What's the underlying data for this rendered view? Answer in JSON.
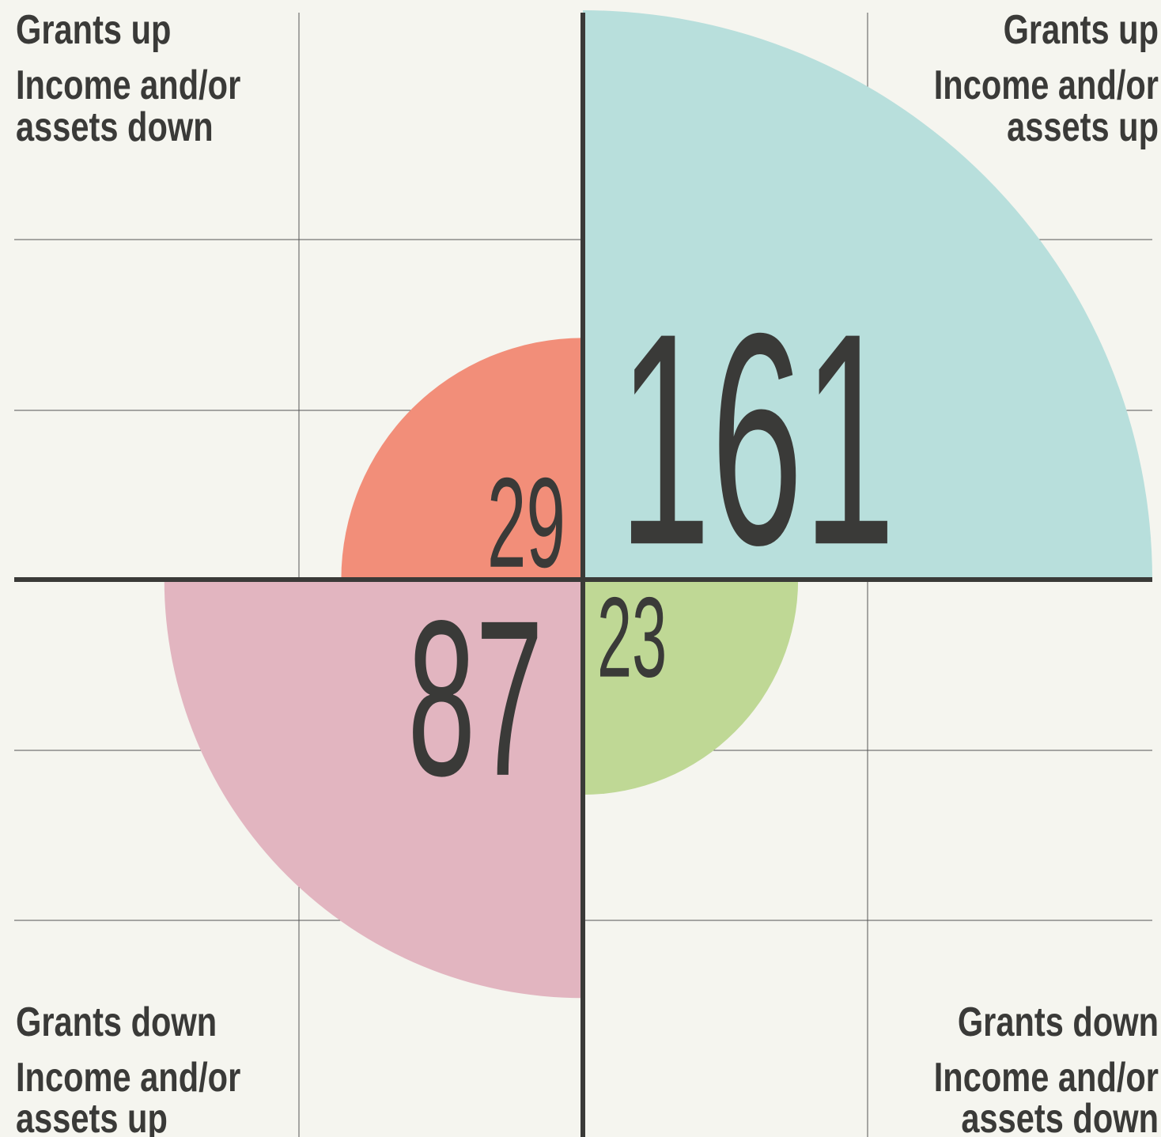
{
  "chart_data": {
    "type": "quadrant",
    "quadrants": [
      {
        "position": "top-left",
        "name": "Grants up",
        "label": [
          "Income and/or",
          "assets down"
        ],
        "value": 29,
        "color": "#f28e79"
      },
      {
        "position": "top-right",
        "name": "Grants up",
        "label": [
          "Income and/or",
          "assets up"
        ],
        "value": 161,
        "color": "#b8dfdc"
      },
      {
        "position": "bottom-left",
        "name": "Grants down",
        "label": [
          "Income and/or",
          "assets up"
        ],
        "value": 87,
        "color": "#e2b5c0"
      },
      {
        "position": "bottom-right",
        "name": "Grants down",
        "label": [
          "Income and/or",
          "assets down"
        ],
        "value": 23,
        "color": "#bfd895"
      }
    ]
  }
}
